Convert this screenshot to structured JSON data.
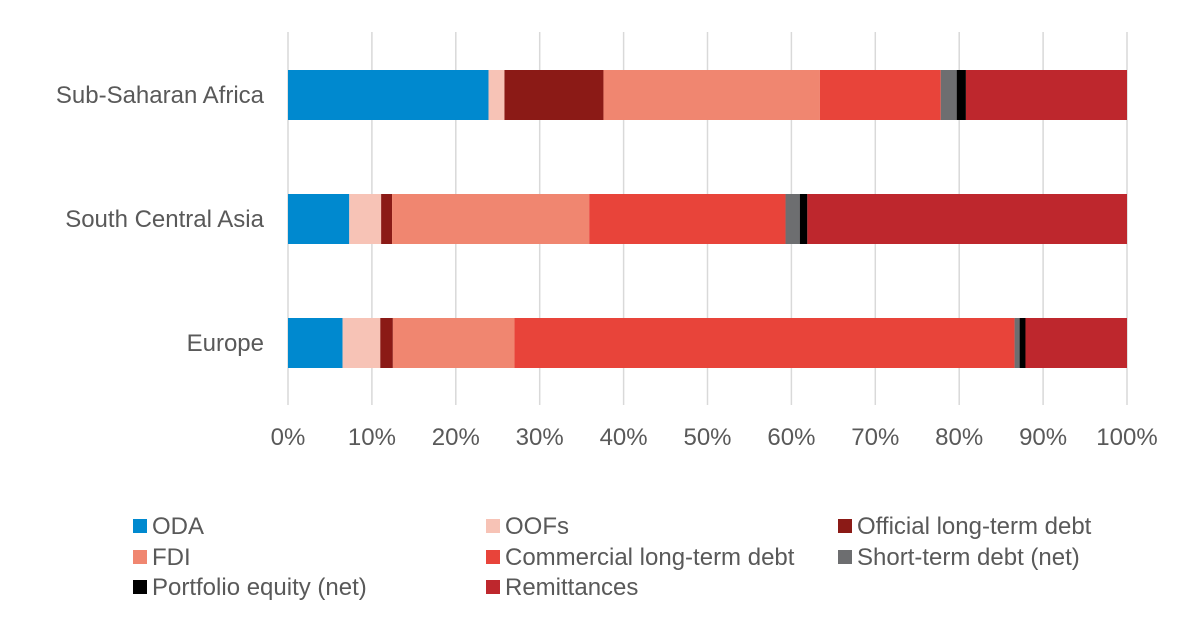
{
  "chart_data": {
    "type": "bar",
    "orientation": "horizontal",
    "stacked": "percent",
    "categories": [
      "Sub-Saharan Africa",
      "South Central Asia",
      "Europe"
    ],
    "series": [
      {
        "name": "ODA",
        "color": "#0089CF",
        "values": [
          23.9,
          7.3,
          6.5
        ]
      },
      {
        "name": "OOFs",
        "color": "#F7C3B6",
        "values": [
          1.9,
          3.8,
          4.5
        ]
      },
      {
        "name": "Official long-term debt",
        "color": "#8B1A16",
        "values": [
          11.8,
          1.3,
          1.5
        ]
      },
      {
        "name": "FDI",
        "color": "#F08670",
        "values": [
          25.8,
          23.5,
          14.5
        ]
      },
      {
        "name": "Commercial long-term debt",
        "color": "#E8443A",
        "values": [
          14.4,
          23.4,
          59.6
        ]
      },
      {
        "name": "Short-term debt (net)",
        "color": "#6D6E70",
        "values": [
          1.9,
          1.7,
          0.6
        ]
      },
      {
        "name": "Portfolio equity (net)",
        "color": "#000000",
        "values": [
          1.1,
          0.9,
          0.7
        ]
      },
      {
        "name": "Remittances",
        "color": "#BE272D",
        "values": [
          19.2,
          38.1,
          12.1
        ]
      }
    ],
    "xlim": [
      0,
      100
    ],
    "xticks": [
      "0%",
      "10%",
      "20%",
      "30%",
      "40%",
      "50%",
      "60%",
      "70%",
      "80%",
      "90%",
      "100%"
    ],
    "grid": "vertical",
    "legend_position": "bottom",
    "legend_order": [
      [
        "ODA",
        "OOFs",
        "Official long-term debt"
      ],
      [
        "FDI",
        "Commercial long-term debt",
        "Short-term debt (net)"
      ],
      [
        "Portfolio equity (net)",
        "Remittances"
      ]
    ]
  }
}
